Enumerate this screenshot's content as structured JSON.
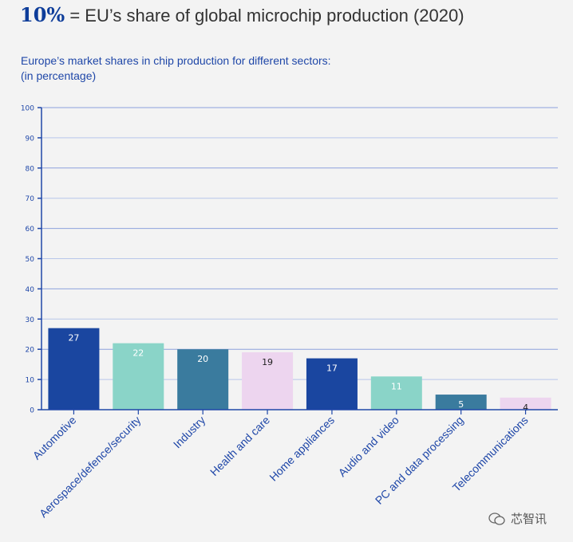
{
  "headline": {
    "highlight": "10%",
    "text": "= EU’s share of global microchip production (2020)"
  },
  "subtitle": {
    "line1": "Europe’s market shares in chip production for different sectors:",
    "line2": "(in percentage)"
  },
  "chart_data": {
    "type": "bar",
    "title": "Europe’s market shares in chip production for different sectors:",
    "ylabel": "(in percentage)",
    "xlabel": "",
    "ylim": [
      0,
      100
    ],
    "yticks": [
      0,
      10,
      20,
      30,
      40,
      50,
      60,
      70,
      80,
      90,
      100
    ],
    "grid": true,
    "categories": [
      "Automotive",
      "Aerospace/defence/security",
      "Industry",
      "Health and care",
      "Home appliances",
      "Audio and video",
      "PC and data processing",
      "Telecommunications"
    ],
    "values": [
      27,
      22,
      20,
      19,
      17,
      11,
      5,
      4
    ],
    "colors": [
      "#1a46a0",
      "#8ad4c8",
      "#3a7b9e",
      "#edd5ef",
      "#1a46a0",
      "#8ad4c8",
      "#3a7b9e",
      "#edd5ef"
    ],
    "label_colors": [
      "#ffffff",
      "#ffffff",
      "#ffffff",
      "#222222",
      "#ffffff",
      "#ffffff",
      "#ffffff",
      "#222222"
    ]
  },
  "watermark": {
    "text": "芯智讯",
    "icon": "wechat-icon"
  }
}
